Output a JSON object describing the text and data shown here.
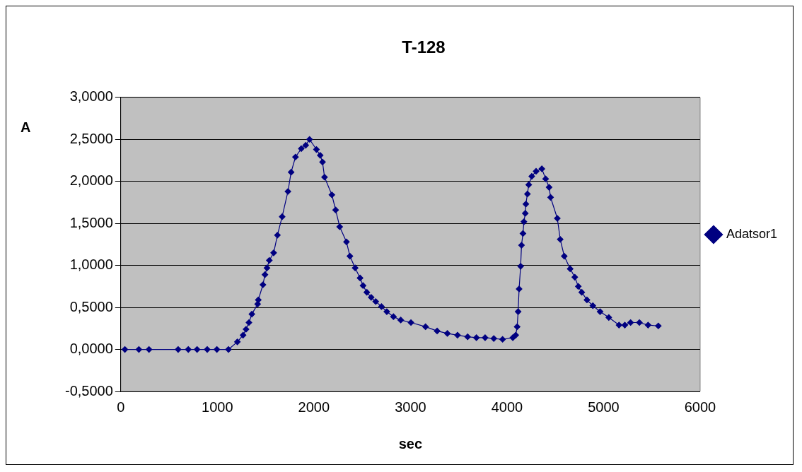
{
  "chart_data": {
    "type": "line",
    "title": "T-128",
    "xlabel": "sec",
    "ylabel": "A",
    "series": [
      {
        "name": "Adatsor1",
        "color": "#000080",
        "x": [
          42,
          187,
          292,
          594,
          699,
          790,
          895,
          995,
          1115,
          1207,
          1266,
          1297,
          1327,
          1357,
          1417,
          1424,
          1472,
          1493,
          1514,
          1538,
          1583,
          1622,
          1671,
          1731,
          1764,
          1809,
          1869,
          1915,
          1955,
          2026,
          2065,
          2089,
          2110,
          2186,
          2225,
          2267,
          2337,
          2373,
          2427,
          2478,
          2509,
          2548,
          2593,
          2640,
          2700,
          2755,
          2824,
          2899,
          3005,
          3156,
          3276,
          3382,
          3487,
          3592,
          3683,
          3773,
          3863,
          3954,
          4060,
          4090,
          4105,
          4115,
          4125,
          4141,
          4150,
          4165,
          4175,
          4189,
          4195,
          4211,
          4225,
          4256,
          4301,
          4361,
          4400,
          4436,
          4451,
          4521,
          4551,
          4593,
          4654,
          4702,
          4738,
          4774,
          4828,
          4889,
          4964,
          5054,
          5160,
          5220,
          5280,
          5371,
          5461,
          5567
        ],
        "values": [
          0,
          0,
          0,
          0,
          0,
          0,
          0,
          0,
          0,
          0.09,
          0.17,
          0.24,
          0.32,
          0.42,
          0.54,
          0.59,
          0.77,
          0.89,
          0.97,
          1.06,
          1.15,
          1.36,
          1.58,
          1.88,
          2.11,
          2.29,
          2.39,
          2.43,
          2.5,
          2.38,
          2.31,
          2.23,
          2.05,
          1.84,
          1.66,
          1.46,
          1.28,
          1.11,
          0.97,
          0.85,
          0.76,
          0.68,
          0.62,
          0.57,
          0.51,
          0.45,
          0.39,
          0.35,
          0.32,
          0.27,
          0.22,
          0.19,
          0.17,
          0.15,
          0.14,
          0.14,
          0.13,
          0.12,
          0.14,
          0.17,
          0.27,
          0.45,
          0.72,
          0.99,
          1.24,
          1.38,
          1.52,
          1.62,
          1.73,
          1.85,
          1.96,
          2.06,
          2.12,
          2.15,
          2.03,
          1.93,
          1.81,
          1.56,
          1.31,
          1.11,
          0.96,
          0.86,
          0.75,
          0.68,
          0.59,
          0.52,
          0.45,
          0.38,
          0.29,
          0.29,
          0.32,
          0.32,
          0.29,
          0.28
        ]
      }
    ],
    "xlim": [
      0,
      6000
    ],
    "xticks": [
      0,
      1000,
      2000,
      3000,
      4000,
      5000,
      6000
    ],
    "ylim": [
      -0.5,
      3
    ],
    "yticks": [
      {
        "value": -0.5,
        "label": "-0,5000"
      },
      {
        "value": 0,
        "label": "0,0000"
      },
      {
        "value": 0.5,
        "label": "0,5000"
      },
      {
        "value": 1,
        "label": "1,0000"
      },
      {
        "value": 1.5,
        "label": "1,5000"
      },
      {
        "value": 2,
        "label": "2,0000"
      },
      {
        "value": 2.5,
        "label": "2,5000"
      },
      {
        "value": 3,
        "label": "3,0000"
      }
    ],
    "grid": "y",
    "legend": "right",
    "marker": "diamond",
    "line_style": "solid"
  }
}
